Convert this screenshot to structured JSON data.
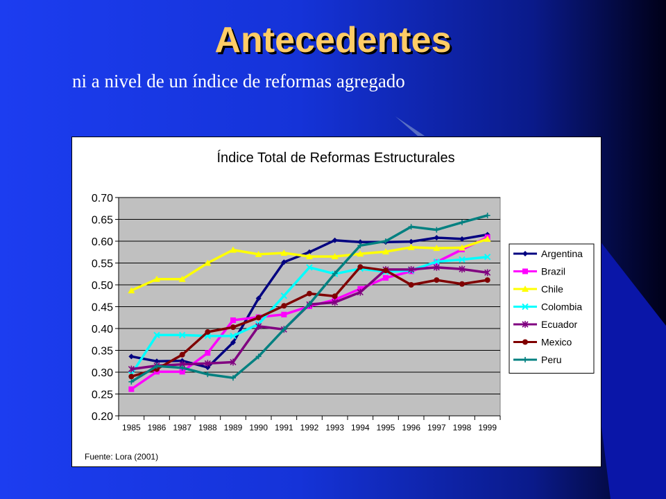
{
  "slide": {
    "title": "Antecedentes",
    "subtitle": "ni a nivel de un índice de reformas agregado"
  },
  "colors": {
    "title": "#ffcc66",
    "plot_background": "#c0c0c0"
  },
  "chart_data": {
    "type": "line",
    "title": "Índice Total de Reformas Estructurales",
    "xlabel": "",
    "ylabel": "",
    "ylim": [
      0.2,
      0.7
    ],
    "yticks": [
      "0.70",
      "0.65",
      "0.60",
      "0.55",
      "0.50",
      "0.45",
      "0.40",
      "0.35",
      "0.30",
      "0.25",
      "0.20"
    ],
    "grid": true,
    "legend_position": "right",
    "source": "Fuente: Lora (2001)",
    "x": [
      "1985",
      "1986",
      "1987",
      "1988",
      "1989",
      "1990",
      "1991",
      "1992",
      "1993",
      "1994",
      "1995",
      "1996",
      "1997",
      "1998",
      "1999"
    ],
    "series": [
      {
        "name": "Argentina",
        "color": "#000080",
        "marker": "diamond",
        "values": [
          0.336,
          0.325,
          0.326,
          0.311,
          0.368,
          0.469,
          0.552,
          0.575,
          0.602,
          0.598,
          0.598,
          0.599,
          0.608,
          0.605,
          0.615
        ]
      },
      {
        "name": "Brazil",
        "color": "#ff00ff",
        "marker": "square",
        "values": [
          0.261,
          0.301,
          0.301,
          0.344,
          0.419,
          0.426,
          0.432,
          0.451,
          0.466,
          0.491,
          0.516,
          0.531,
          0.552,
          0.581,
          0.609
        ]
      },
      {
        "name": "Chile",
        "color": "#ffff00",
        "marker": "triangle",
        "values": [
          0.487,
          0.513,
          0.513,
          0.55,
          0.58,
          0.57,
          0.573,
          0.565,
          0.565,
          0.571,
          0.576,
          0.586,
          0.584,
          0.585,
          0.605
        ]
      },
      {
        "name": "Colombia",
        "color": "#00ffff",
        "marker": "x",
        "values": [
          0.295,
          0.385,
          0.385,
          0.383,
          0.383,
          0.41,
          0.475,
          0.54,
          0.525,
          0.537,
          0.53,
          0.533,
          0.553,
          0.558,
          0.564
        ]
      },
      {
        "name": "Ecuador",
        "color": "#800080",
        "marker": "asterisk",
        "values": [
          0.307,
          0.315,
          0.318,
          0.32,
          0.323,
          0.405,
          0.398,
          0.455,
          0.46,
          0.483,
          0.535,
          0.535,
          0.54,
          0.536,
          0.528
        ]
      },
      {
        "name": "Mexico",
        "color": "#800000",
        "marker": "circle",
        "values": [
          0.29,
          0.307,
          0.34,
          0.392,
          0.403,
          0.425,
          0.452,
          0.48,
          0.474,
          0.541,
          0.533,
          0.5,
          0.511,
          0.502,
          0.511
        ]
      },
      {
        "name": "Peru",
        "color": "#008080",
        "marker": "plus",
        "values": [
          0.278,
          0.314,
          0.31,
          0.295,
          0.287,
          0.336,
          0.398,
          0.456,
          0.526,
          0.59,
          0.6,
          0.633,
          0.626,
          0.643,
          0.659
        ]
      }
    ]
  }
}
